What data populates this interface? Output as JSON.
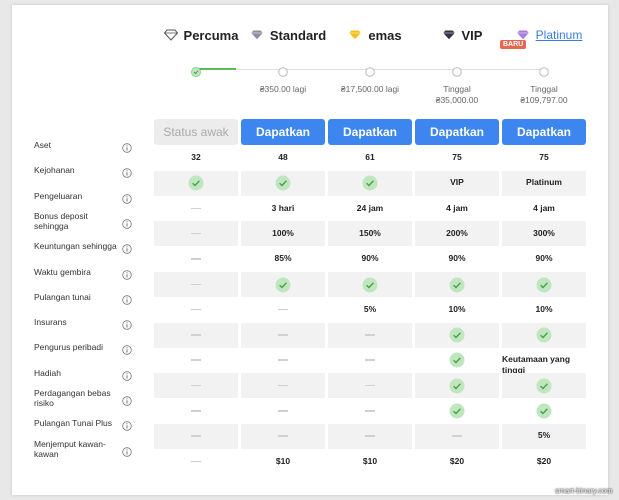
{
  "plans": [
    {
      "name": "Percuma",
      "icon_color": "#ffffff",
      "button": "Status awak"
    },
    {
      "name": "Standard",
      "icon_color": "#8e8ea8",
      "progress_label": [
        "₴350.00 lagi"
      ],
      "button": "Dapatkan"
    },
    {
      "name": "emas",
      "icon_color": "#f2c21b",
      "progress_label": [
        "₴17,500.00 lagi"
      ],
      "button": "Dapatkan"
    },
    {
      "name": "VIP",
      "icon_color": "#33334a",
      "progress_label": [
        "Tinggal",
        "₴35,000.00"
      ],
      "button": "Dapatkan"
    },
    {
      "name": "Platinum",
      "icon_color": "#a77be0",
      "badge": "BARU",
      "progress_label": [
        "Tinggal",
        "₴109,797.00"
      ],
      "button": "Dapatkan"
    }
  ],
  "rows": [
    {
      "label": "Aset",
      "cells": [
        "32",
        "48",
        "61",
        "75",
        "75"
      ]
    },
    {
      "label": "Kejohanan",
      "cells": [
        true,
        true,
        true,
        "VIP",
        "Platinum"
      ]
    },
    {
      "label": "Pengeluaran",
      "cells": [
        false,
        "3 hari",
        "24 jam",
        "4 jam",
        "4 jam"
      ]
    },
    {
      "label": "Bonus deposit sehingga",
      "cells": [
        false,
        "100%",
        "150%",
        "200%",
        "300%"
      ]
    },
    {
      "label": "Keuntungan sehingga",
      "cells": [
        false,
        "85%",
        "90%",
        "90%",
        "90%"
      ]
    },
    {
      "label": "Waktu gembira",
      "cells": [
        false,
        true,
        true,
        true,
        true
      ]
    },
    {
      "label": "Pulangan tunai",
      "cells": [
        false,
        false,
        "5%",
        "10%",
        "10%"
      ]
    },
    {
      "label": "Insurans",
      "cells": [
        false,
        false,
        false,
        true,
        true
      ]
    },
    {
      "label": "Pengurus peribadi",
      "cells": [
        false,
        false,
        false,
        true,
        "Keutamaan yang tinggi"
      ]
    },
    {
      "label": "Hadiah",
      "cells": [
        false,
        false,
        false,
        true,
        true
      ]
    },
    {
      "label": "Perdagangan bebas risiko",
      "cells": [
        false,
        false,
        false,
        true,
        true
      ]
    },
    {
      "label": "Pulangan Tunai Plus",
      "cells": [
        false,
        false,
        false,
        false,
        "5%"
      ]
    },
    {
      "label": "Menjemput kawan-kawan",
      "cells": [
        false,
        "$10",
        "$10",
        "$20",
        "$20"
      ]
    }
  ],
  "watermark": "smart-binary.com"
}
